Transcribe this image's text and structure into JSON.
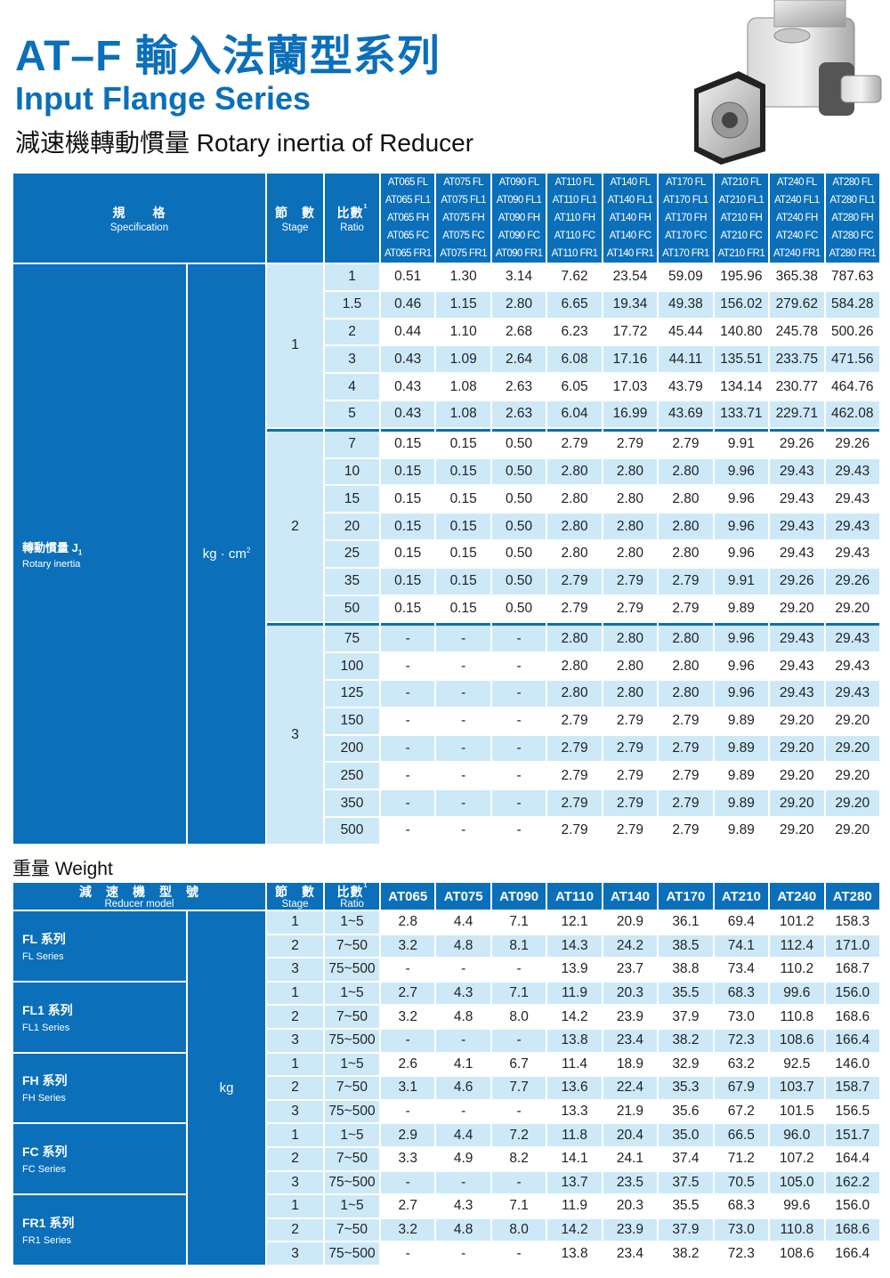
{
  "header": {
    "title": "AT–F 輸入法蘭型系列",
    "subtitle": "Input Flange Series",
    "section": "減速機轉動慣量 Rotary inertia of Reducer"
  },
  "colors": {
    "brand_blue": "#0b6fba",
    "light_blue": "#cde9f8"
  },
  "product_image": "right-angle-gear-reducer-photo",
  "inertia": {
    "spec_zh": "規　　格",
    "spec_en": "Specification",
    "stage_zh": "節　數",
    "stage_en": "Stage",
    "ratio_zh": "比數",
    "ratio_sup": "1",
    "models": [
      [
        "AT065 FL",
        "AT065 FL1",
        "AT065 FH",
        "AT065 FC",
        "AT065 FR1"
      ],
      [
        "AT075 FL",
        "AT075 FL1",
        "AT075 FH",
        "AT075 FC",
        "AT075 FR1"
      ],
      [
        "AT090 FL",
        "AT090 FL1",
        "AT090 FH",
        "AT090 FC",
        "AT090 FR1"
      ],
      [
        "AT110 FL",
        "AT110 FL1",
        "AT110 FH",
        "AT110 FC",
        "AT110 FR1"
      ],
      [
        "AT140 FL",
        "AT140 FL1",
        "AT140 FH",
        "AT140 FC",
        "AT140 FR1"
      ],
      [
        "AT170 FL",
        "AT170 FL1",
        "AT170 FH",
        "AT170 FC",
        "AT170 FR1"
      ],
      [
        "AT210 FL",
        "AT210 FL1",
        "AT210 FH",
        "AT210 FC",
        "AT210 FR1"
      ],
      [
        "AT240 FL",
        "AT240 FL1",
        "AT240 FH",
        "AT240 FC",
        "AT240 FR1"
      ],
      [
        "AT280 FL",
        "AT280 FL1",
        "AT280 FH",
        "AT280 FC",
        "AT280 FR1"
      ]
    ],
    "label_zh": "轉動慣量 J",
    "label_sub": "1",
    "label_en": "Rotary inertia",
    "unit": "kg · cm",
    "unit_sup": "2",
    "groups": [
      {
        "stage": "1",
        "rows": [
          {
            "ratio": "1",
            "values": [
              "0.51",
              "1.30",
              "3.14",
              "7.62",
              "23.54",
              "59.09",
              "195.96",
              "365.38",
              "787.63"
            ]
          },
          {
            "ratio": "1.5",
            "values": [
              "0.46",
              "1.15",
              "2.80",
              "6.65",
              "19.34",
              "49.38",
              "156.02",
              "279.62",
              "584.28"
            ]
          },
          {
            "ratio": "2",
            "values": [
              "0.44",
              "1.10",
              "2.68",
              "6.23",
              "17.72",
              "45.44",
              "140.80",
              "245.78",
              "500.26"
            ]
          },
          {
            "ratio": "3",
            "values": [
              "0.43",
              "1.09",
              "2.64",
              "6.08",
              "17.16",
              "44.11",
              "135.51",
              "233.75",
              "471.56"
            ]
          },
          {
            "ratio": "4",
            "values": [
              "0.43",
              "1.08",
              "2.63",
              "6.05",
              "17.03",
              "43.79",
              "134.14",
              "230.77",
              "464.76"
            ]
          },
          {
            "ratio": "5",
            "values": [
              "0.43",
              "1.08",
              "2.63",
              "6.04",
              "16.99",
              "43.69",
              "133.71",
              "229.71",
              "462.08"
            ]
          }
        ]
      },
      {
        "stage": "2",
        "rows": [
          {
            "ratio": "7",
            "values": [
              "0.15",
              "0.15",
              "0.50",
              "2.79",
              "2.79",
              "2.79",
              "9.91",
              "29.26",
              "29.26"
            ]
          },
          {
            "ratio": "10",
            "values": [
              "0.15",
              "0.15",
              "0.50",
              "2.80",
              "2.80",
              "2.80",
              "9.96",
              "29.43",
              "29.43"
            ]
          },
          {
            "ratio": "15",
            "values": [
              "0.15",
              "0.15",
              "0.50",
              "2.80",
              "2.80",
              "2.80",
              "9.96",
              "29.43",
              "29.43"
            ]
          },
          {
            "ratio": "20",
            "values": [
              "0.15",
              "0.15",
              "0.50",
              "2.80",
              "2.80",
              "2.80",
              "9.96",
              "29.43",
              "29.43"
            ]
          },
          {
            "ratio": "25",
            "values": [
              "0.15",
              "0.15",
              "0.50",
              "2.80",
              "2.80",
              "2.80",
              "9.96",
              "29.43",
              "29.43"
            ]
          },
          {
            "ratio": "35",
            "values": [
              "0.15",
              "0.15",
              "0.50",
              "2.79",
              "2.79",
              "2.79",
              "9.91",
              "29.26",
              "29.26"
            ]
          },
          {
            "ratio": "50",
            "values": [
              "0.15",
              "0.15",
              "0.50",
              "2.79",
              "2.79",
              "2.79",
              "9.89",
              "29.20",
              "29.20"
            ]
          }
        ]
      },
      {
        "stage": "3",
        "rows": [
          {
            "ratio": "75",
            "values": [
              "-",
              "-",
              "-",
              "2.80",
              "2.80",
              "2.80",
              "9.96",
              "29.43",
              "29.43"
            ]
          },
          {
            "ratio": "100",
            "values": [
              "-",
              "-",
              "-",
              "2.80",
              "2.80",
              "2.80",
              "9.96",
              "29.43",
              "29.43"
            ]
          },
          {
            "ratio": "125",
            "values": [
              "-",
              "-",
              "-",
              "2.80",
              "2.80",
              "2.80",
              "9.96",
              "29.43",
              "29.43"
            ]
          },
          {
            "ratio": "150",
            "values": [
              "-",
              "-",
              "-",
              "2.79",
              "2.79",
              "2.79",
              "9.89",
              "29.20",
              "29.20"
            ]
          },
          {
            "ratio": "200",
            "values": [
              "-",
              "-",
              "-",
              "2.79",
              "2.79",
              "2.79",
              "9.89",
              "29.20",
              "29.20"
            ]
          },
          {
            "ratio": "250",
            "values": [
              "-",
              "-",
              "-",
              "2.79",
              "2.79",
              "2.79",
              "9.89",
              "29.20",
              "29.20"
            ]
          },
          {
            "ratio": "350",
            "values": [
              "-",
              "-",
              "-",
              "2.79",
              "2.79",
              "2.79",
              "9.89",
              "29.20",
              "29.20"
            ]
          },
          {
            "ratio": "500",
            "values": [
              "-",
              "-",
              "-",
              "2.79",
              "2.79",
              "2.79",
              "9.89",
              "29.20",
              "29.20"
            ]
          }
        ]
      }
    ]
  },
  "weight": {
    "title": "重量 Weight",
    "model_zh": "減　速　機　型　號",
    "model_en": "Reducer model",
    "stage_zh": "節　數",
    "stage_en": "Stage",
    "ratio_zh": "比數",
    "ratio_sup": "1",
    "models": [
      "AT065",
      "AT075",
      "AT090",
      "AT110",
      "AT140",
      "AT170",
      "AT210",
      "AT240",
      "AT280"
    ],
    "unit": "kg",
    "series": [
      {
        "name": "FL 系列",
        "en": "FL Series",
        "rows": [
          {
            "stage": "1",
            "ratio": "1~5",
            "values": [
              "2.8",
              "4.4",
              "7.1",
              "12.1",
              "20.9",
              "36.1",
              "69.4",
              "101.2",
              "158.3"
            ]
          },
          {
            "stage": "2",
            "ratio": "7~50",
            "values": [
              "3.2",
              "4.8",
              "8.1",
              "14.3",
              "24.2",
              "38.5",
              "74.1",
              "112.4",
              "171.0"
            ]
          },
          {
            "stage": "3",
            "ratio": "75~500",
            "values": [
              "-",
              "-",
              "-",
              "13.9",
              "23.7",
              "38.8",
              "73.4",
              "110.2",
              "168.7"
            ]
          }
        ]
      },
      {
        "name": "FL1 系列",
        "en": "FL1 Series",
        "rows": [
          {
            "stage": "1",
            "ratio": "1~5",
            "values": [
              "2.7",
              "4.3",
              "7.1",
              "11.9",
              "20.3",
              "35.5",
              "68.3",
              "99.6",
              "156.0"
            ]
          },
          {
            "stage": "2",
            "ratio": "7~50",
            "values": [
              "3.2",
              "4.8",
              "8.0",
              "14.2",
              "23.9",
              "37.9",
              "73.0",
              "110.8",
              "168.6"
            ]
          },
          {
            "stage": "3",
            "ratio": "75~500",
            "values": [
              "-",
              "-",
              "-",
              "13.8",
              "23.4",
              "38.2",
              "72.3",
              "108.6",
              "166.4"
            ]
          }
        ]
      },
      {
        "name": "FH 系列",
        "en": "FH Series",
        "rows": [
          {
            "stage": "1",
            "ratio": "1~5",
            "values": [
              "2.6",
              "4.1",
              "6.7",
              "11.4",
              "18.9",
              "32.9",
              "63.2",
              "92.5",
              "146.0"
            ]
          },
          {
            "stage": "2",
            "ratio": "7~50",
            "values": [
              "3.1",
              "4.6",
              "7.7",
              "13.6",
              "22.4",
              "35.3",
              "67.9",
              "103.7",
              "158.7"
            ]
          },
          {
            "stage": "3",
            "ratio": "75~500",
            "values": [
              "-",
              "-",
              "-",
              "13.3",
              "21.9",
              "35.6",
              "67.2",
              "101.5",
              "156.5"
            ]
          }
        ]
      },
      {
        "name": "FC 系列",
        "en": "FC Series",
        "rows": [
          {
            "stage": "1",
            "ratio": "1~5",
            "values": [
              "2.9",
              "4.4",
              "7.2",
              "11.8",
              "20.4",
              "35.0",
              "66.5",
              "96.0",
              "151.7"
            ]
          },
          {
            "stage": "2",
            "ratio": "7~50",
            "values": [
              "3.3",
              "4.9",
              "8.2",
              "14.1",
              "24.1",
              "37.4",
              "71.2",
              "107.2",
              "164.4"
            ]
          },
          {
            "stage": "3",
            "ratio": "75~500",
            "values": [
              "-",
              "-",
              "-",
              "13.7",
              "23.5",
              "37.5",
              "70.5",
              "105.0",
              "162.2"
            ]
          }
        ]
      },
      {
        "name": "FR1 系列",
        "en": "FR1 Series",
        "rows": [
          {
            "stage": "1",
            "ratio": "1~5",
            "values": [
              "2.7",
              "4.3",
              "7.1",
              "11.9",
              "20.3",
              "35.5",
              "68.3",
              "99.6",
              "156.0"
            ]
          },
          {
            "stage": "2",
            "ratio": "7~50",
            "values": [
              "3.2",
              "4.8",
              "8.0",
              "14.2",
              "23.9",
              "37.9",
              "73.0",
              "110.8",
              "168.6"
            ]
          },
          {
            "stage": "3",
            "ratio": "75~500",
            "values": [
              "-",
              "-",
              "-",
              "13.8",
              "23.4",
              "38.2",
              "72.3",
              "108.6",
              "166.4"
            ]
          }
        ]
      }
    ]
  }
}
